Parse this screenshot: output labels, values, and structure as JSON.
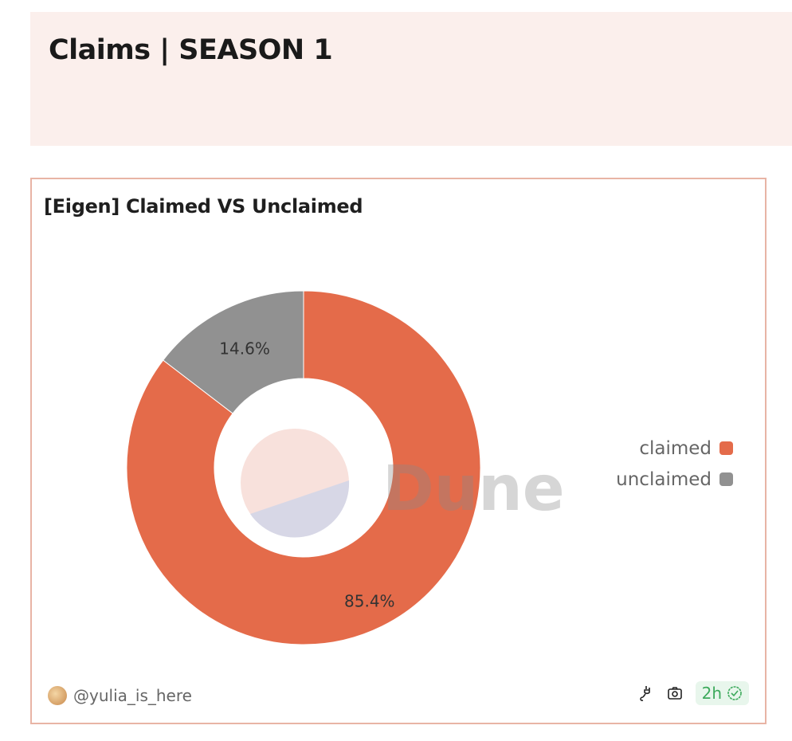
{
  "header": {
    "title": "Claims | SEASON 1"
  },
  "card": {
    "title": "[Eigen] Claimed VS Unclaimed",
    "author": "@yulia_is_here",
    "freshness": "2h",
    "watermark": "Dune"
  },
  "chart_data": {
    "type": "pie",
    "donut": true,
    "title": "[Eigen] Claimed VS Unclaimed",
    "legend_position": "right",
    "slices": [
      {
        "name": "claimed",
        "value": 85.4,
        "label": "85.4%",
        "color": "#e46b4a"
      },
      {
        "name": "unclaimed",
        "value": 14.6,
        "label": "14.6%",
        "color": "#919191"
      }
    ]
  },
  "icons": {
    "connect": "plug-icon",
    "snapshot": "camera-icon",
    "verified": "check-badge-icon"
  }
}
